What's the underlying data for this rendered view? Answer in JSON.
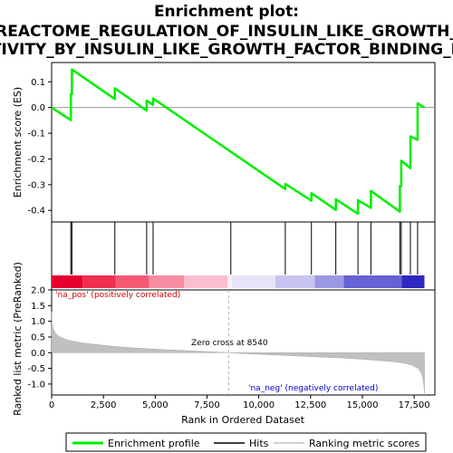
{
  "title_lines": [
    "Enrichment plot:",
    "REACTOME_REGULATION_OF_INSULIN_LIKE_GROWTH_",
    "TIVITY_BY_INSULIN_LIKE_GROWTH_FACTOR_BINDING_P"
  ],
  "chart_data": {
    "type": "line",
    "x_range": [
      0,
      18500
    ],
    "panels": {
      "es": {
        "ylabel": "Enrichment score (ES)",
        "ylim": [
          -0.445,
          0.175
        ],
        "yticks": [
          0.1,
          0.0,
          -0.1,
          -0.2,
          -0.3,
          -0.4
        ],
        "ytick_labels": [
          "0.1",
          "0.0",
          "-0.1",
          "-0.2",
          "-0.3",
          "-0.4"
        ],
        "series_color": "#00ee00",
        "points": [
          [
            0,
            0.0
          ],
          [
            927,
            -0.049
          ],
          [
            927,
            0.052
          ],
          [
            978,
            0.052
          ],
          [
            978,
            0.148
          ],
          [
            3050,
            0.033
          ],
          [
            3050,
            0.075
          ],
          [
            4587,
            -0.012
          ],
          [
            4587,
            0.027
          ],
          [
            4897,
            0.01
          ],
          [
            4897,
            0.035
          ],
          [
            11279,
            -0.317
          ],
          [
            11279,
            -0.297
          ],
          [
            12540,
            -0.362
          ],
          [
            12540,
            -0.333
          ],
          [
            13718,
            -0.398
          ],
          [
            13718,
            -0.357
          ],
          [
            14788,
            -0.413
          ],
          [
            14788,
            -0.36
          ],
          [
            15412,
            -0.39
          ],
          [
            15412,
            -0.324
          ],
          [
            16812,
            -0.405
          ],
          [
            16812,
            -0.305
          ],
          [
            16878,
            -0.305
          ],
          [
            16878,
            -0.207
          ],
          [
            17317,
            -0.236
          ],
          [
            17317,
            -0.112
          ],
          [
            17666,
            -0.126
          ],
          [
            17666,
            0.016
          ],
          [
            17996,
            0.0
          ]
        ],
        "gridlines": false
      },
      "hits": {
        "positions": [
          927,
          978,
          3050,
          4587,
          4897,
          8650,
          11279,
          12540,
          13718,
          14788,
          15412,
          16812,
          16878,
          17317,
          17666
        ],
        "bar_colors": [
          "#e8002f",
          "#f03050",
          "#f45a74",
          "#f88ca0",
          "#fbbed0",
          "#fff0f5",
          "#e8e4f8",
          "#c8c4f0",
          "#9c98e4",
          "#6462d4",
          "#2c28c0",
          "#0c0aa8"
        ],
        "bar_breaks": [
          0,
          1500,
          3100,
          4700,
          6400,
          8500,
          8700,
          10800,
          12700,
          14100,
          16900,
          17996
        ]
      },
      "metric": {
        "ylabel": "Ranked list metric (PreRanked)",
        "ylim": [
          -1.35,
          2.0
        ],
        "yticks": [
          2.0,
          1.5,
          1.0,
          0.5,
          0.0,
          -0.5,
          -1.0
        ],
        "ytick_labels": [
          "2.0",
          "1.5",
          "1.0",
          "0.5",
          "0.0",
          "-0.5",
          "-1.0"
        ],
        "fill_color": "#c0c0c0",
        "points": [
          [
            0,
            1.3
          ],
          [
            20,
            0.95
          ],
          [
            80,
            0.75
          ],
          [
            200,
            0.6
          ],
          [
            400,
            0.5
          ],
          [
            700,
            0.42
          ],
          [
            1000,
            0.37
          ],
          [
            1500,
            0.31
          ],
          [
            2000,
            0.27
          ],
          [
            3000,
            0.2
          ],
          [
            4000,
            0.15
          ],
          [
            5000,
            0.11
          ],
          [
            6000,
            0.08
          ],
          [
            7000,
            0.05
          ],
          [
            8000,
            0.02
          ],
          [
            8540,
            0.0
          ],
          [
            9000,
            -0.02
          ],
          [
            10000,
            -0.05
          ],
          [
            11000,
            -0.08
          ],
          [
            12000,
            -0.11
          ],
          [
            13000,
            -0.14
          ],
          [
            14000,
            -0.17
          ],
          [
            15000,
            -0.21
          ],
          [
            16000,
            -0.26
          ],
          [
            16500,
            -0.29
          ],
          [
            17000,
            -0.33
          ],
          [
            17400,
            -0.4
          ],
          [
            17700,
            -0.5
          ],
          [
            17850,
            -0.65
          ],
          [
            17930,
            -0.85
          ],
          [
            17975,
            -1.1
          ],
          [
            17996,
            -1.3
          ]
        ],
        "zero_cross_label": "Zero cross at 8540",
        "zero_cross": 8540,
        "pos_label": "'na_pos' (positively correlated)",
        "neg_label": "'na_neg' (negatively correlated)",
        "pos_color": "#cc0000",
        "neg_color": "#0000cc"
      }
    },
    "xticks": [
      0,
      2500,
      5000,
      7500,
      10000,
      12500,
      15000,
      17500
    ],
    "xtick_labels": [
      "0",
      "2,500",
      "5,000",
      "7,500",
      "10,000",
      "12,500",
      "15,000",
      "17,500"
    ],
    "xlabel": "Rank in Ordered Dataset"
  },
  "legend": {
    "items": [
      {
        "label": "Enrichment profile",
        "color": "#00ee00"
      },
      {
        "label": "Hits",
        "color": "#000000"
      },
      {
        "label": "Ranking metric scores",
        "color": "#c0c0c0"
      }
    ]
  }
}
